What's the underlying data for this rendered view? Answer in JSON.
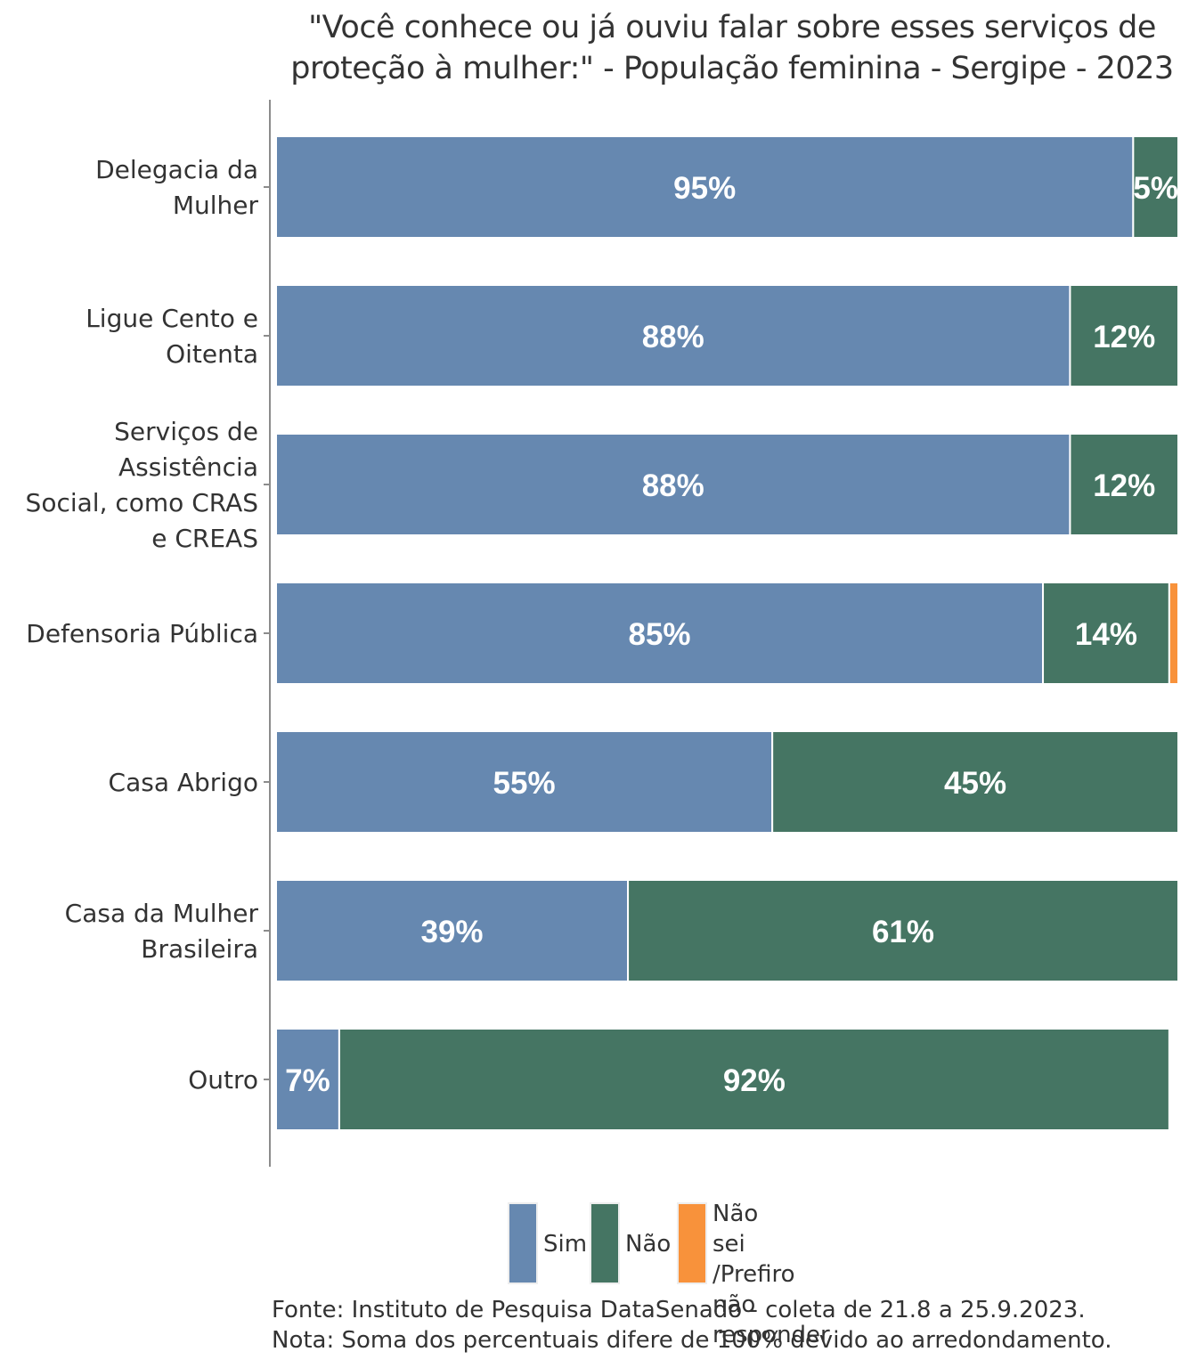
{
  "chart_data": {
    "type": "bar",
    "orientation": "horizontal",
    "stacked": true,
    "title": "\"Você conhece ou já ouviu falar sobre esses serviços de proteção à mulher:\" - População feminina - Sergipe - 2023",
    "title_lines": [
      "\"Você conhece ou já ouviu falar sobre esses serviços de",
      "proteção à mulher:\" - População feminina - Sergipe - 2023"
    ],
    "xlabel": "",
    "ylabel": "",
    "xlim": [
      0,
      100
    ],
    "grid": false,
    "legend_position": "bottom",
    "categories": [
      "Delegacia da Mulher",
      "Ligue Cento e Oitenta",
      "Serviços de Assistência Social, como CRAS e CREAS",
      "Defensoria Pública",
      "Casa Abrigo",
      "Casa da Mulher Brasileira",
      "Outro"
    ],
    "category_lines": [
      [
        "Delegacia da",
        "Mulher"
      ],
      [
        "Ligue Cento e",
        "Oitenta"
      ],
      [
        "Serviços de",
        "Assistência",
        "Social, como CRAS",
        "e CREAS"
      ],
      [
        "Defensoria Pública"
      ],
      [
        "Casa Abrigo"
      ],
      [
        "Casa da Mulher",
        "Brasileira"
      ],
      [
        "Outro"
      ]
    ],
    "series": [
      {
        "name": "Sim",
        "color": "#6688b0",
        "values": [
          95,
          88,
          88,
          85,
          55,
          39,
          7
        ],
        "labels": [
          "95%",
          "88%",
          "88%",
          "85%",
          "55%",
          "39%",
          "7%"
        ]
      },
      {
        "name": "Não",
        "color": "#457563",
        "values": [
          5,
          12,
          12,
          14,
          45,
          61,
          92
        ],
        "labels": [
          "5%",
          "12%",
          "12%",
          "14%",
          "45%",
          "61%",
          "92%"
        ]
      },
      {
        "name": "Não sei /Prefiro não responder",
        "color": "#f8923b",
        "values": [
          0,
          0,
          0,
          1,
          0,
          0,
          0
        ],
        "labels": [
          "",
          "",
          "",
          "",
          "",
          "",
          ""
        ]
      }
    ]
  },
  "legend": {
    "items": [
      {
        "label": "Sim",
        "color": "#6688b0"
      },
      {
        "label": "Não",
        "color": "#457563"
      },
      {
        "label": "Não\nsei /Prefiro\nnão responder",
        "color": "#f8923b"
      }
    ]
  },
  "footer": {
    "source": "Fonte: Instituto de Pesquisa DataSenado - coleta de 21.8 a 25.9.2023.",
    "note": "Nota: Soma dos percentuais difere de 100% devido ao arredondamento."
  }
}
